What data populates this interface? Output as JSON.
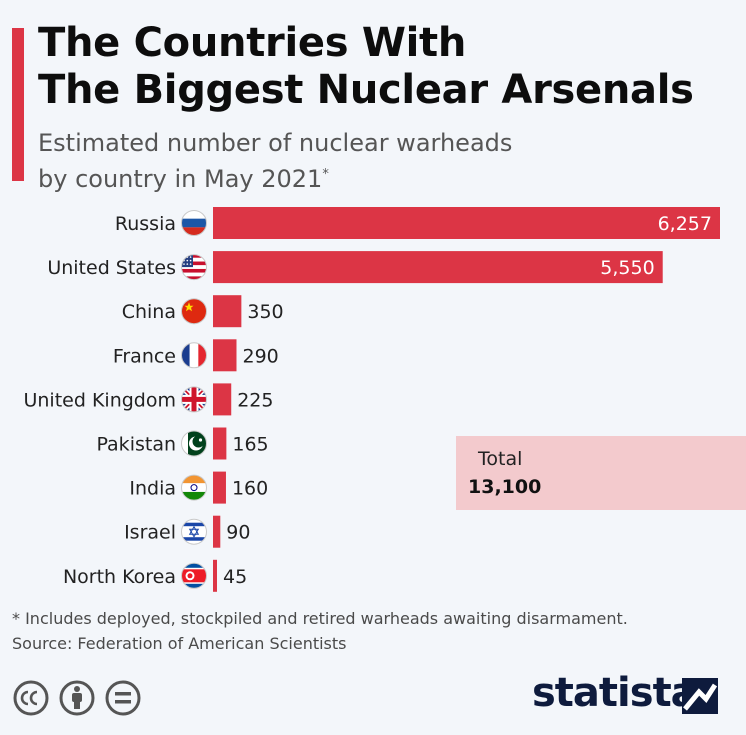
{
  "title_line1": "The Countries With",
  "title_line2": "The Biggest Nuclear Arsenals",
  "subtitle_line1": "Estimated number of nuclear warheads",
  "subtitle_line2": "by country in May 2021",
  "subtitle_mark": "*",
  "total_label": "Total",
  "total_value": "13,100",
  "footnote": "* Includes deployed, stockpiled and retired warheads awaiting disarmament.",
  "source": "Source: Federation of American Scientists",
  "brand": "statista",
  "colors": {
    "bar": "#dc3545",
    "total_box": "#f3cacd",
    "background": "#f3f6fa"
  },
  "icons": [
    "cc-icon",
    "attribution-icon",
    "no-derivatives-icon",
    "statista-logo"
  ],
  "chart_data": {
    "type": "bar",
    "orientation": "horizontal",
    "categories": [
      "Russia",
      "United States",
      "China",
      "France",
      "United Kingdom",
      "Pakistan",
      "India",
      "Israel",
      "North Korea"
    ],
    "values": [
      6257,
      5550,
      350,
      290,
      225,
      165,
      160,
      90,
      45
    ],
    "value_labels": [
      "6,257",
      "5,550",
      "350",
      "290",
      "225",
      "165",
      "160",
      "90",
      "45"
    ],
    "flags": [
      "russia-flag-icon",
      "usa-flag-icon",
      "china-flag-icon",
      "france-flag-icon",
      "uk-flag-icon",
      "pakistan-flag-icon",
      "india-flag-icon",
      "israel-flag-icon",
      "north-korea-flag-icon"
    ],
    "xlim": [
      0,
      6257
    ],
    "grid": false,
    "legend": "none"
  }
}
